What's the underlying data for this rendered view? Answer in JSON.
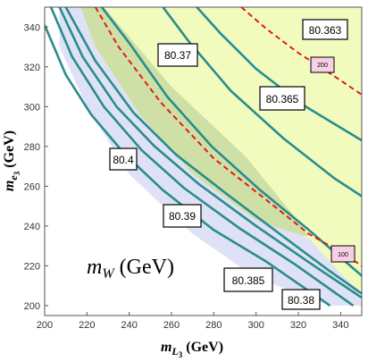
{
  "chart_data": {
    "type": "contour",
    "x_axis": {
      "label_base": "m",
      "label_sub": "L",
      "label_subsub": "3",
      "label_units": "(GeV)",
      "range": [
        200,
        350
      ],
      "ticks": [
        200,
        220,
        240,
        260,
        280,
        300,
        320,
        340
      ]
    },
    "y_axis": {
      "label_base": "m",
      "label_sub": "e",
      "label_subsub": "3",
      "label_units": "(GeV)",
      "range": [
        195,
        350
      ],
      "ticks": [
        200,
        220,
        240,
        260,
        280,
        300,
        320,
        340
      ]
    },
    "plot_label": {
      "base": "m",
      "sub": "W",
      "units": "(GeV)"
    },
    "colors": {
      "yellow_region": "#f2fbbe",
      "green_region": "#cfe0a6",
      "blue_region": "#dfe2f6",
      "contour": "#2a8c8c",
      "dashed": "#e01b1b",
      "small_label_fill": "#f8cfe4"
    },
    "regions": {
      "yellow": [
        [
          214,
          350
        ],
        [
          350,
          350
        ],
        [
          350,
          208
        ],
        [
          335,
          208
        ],
        [
          300,
          233
        ],
        [
          270,
          262
        ],
        [
          245,
          290
        ],
        [
          225,
          320
        ],
        [
          214,
          340
        ]
      ],
      "green": [
        [
          214,
          350
        ],
        [
          228,
          350
        ],
        [
          260,
          310
        ],
        [
          295,
          275
        ],
        [
          318,
          245
        ],
        [
          325,
          235
        ],
        [
          305,
          236
        ],
        [
          278,
          258
        ],
        [
          252,
          285
        ],
        [
          232,
          315
        ],
        [
          218,
          340
        ]
      ],
      "blue": [
        [
          207,
          350
        ],
        [
          217,
          350
        ],
        [
          224,
          330
        ],
        [
          245,
          296
        ],
        [
          270,
          266
        ],
        [
          300,
          243
        ],
        [
          325,
          234
        ],
        [
          340,
          216
        ],
        [
          348,
          208
        ],
        [
          350,
          200
        ],
        [
          335,
          200
        ],
        [
          300,
          214
        ],
        [
          270,
          236
        ],
        [
          240,
          266
        ],
        [
          220,
          300
        ],
        [
          207,
          330
        ]
      ]
    },
    "contours": [
      {
        "label": "80.4",
        "points": [
          [
            200,
            341
          ],
          [
            210,
            316
          ],
          [
            222,
            296
          ],
          [
            238,
            276
          ],
          [
            256,
            258
          ],
          [
            280,
            238
          ],
          [
            305,
            222
          ],
          [
            335,
            200
          ]
        ]
      },
      {
        "label": "80.39",
        "points": [
          [
            203,
            350
          ],
          [
            213,
            325
          ],
          [
            228,
            300
          ],
          [
            246,
            278
          ],
          [
            266,
            259
          ],
          [
            292,
            239
          ],
          [
            318,
            221
          ],
          [
            346,
            200
          ]
        ]
      },
      {
        "label": "80.385",
        "points": [
          [
            207,
            350
          ],
          [
            218,
            325
          ],
          [
            234,
            300
          ],
          [
            252,
            280
          ],
          [
            273,
            261
          ],
          [
            300,
            240
          ],
          [
            326,
            221
          ],
          [
            350,
            204
          ]
        ]
      },
      {
        "label": "80.38",
        "points": [
          [
            210,
            350
          ],
          [
            224,
            323
          ],
          [
            242,
            297
          ],
          [
            262,
            276
          ],
          [
            285,
            257
          ],
          [
            310,
            237
          ],
          [
            334,
            218
          ],
          [
            350,
            206
          ]
        ]
      },
      {
        "label": "80.37",
        "points": [
          [
            227,
            350
          ],
          [
            240,
            332
          ],
          [
            258,
            305
          ],
          [
            279,
            280
          ],
          [
            302,
            258
          ],
          [
            325,
            238
          ],
          [
            350,
            215
          ]
        ]
      },
      {
        "label": "80.365",
        "points": [
          [
            256,
            350
          ],
          [
            268,
            333
          ],
          [
            288,
            308
          ],
          [
            313,
            284
          ],
          [
            337,
            264
          ],
          [
            350,
            255
          ]
        ]
      },
      {
        "label": "80.363",
        "points": [
          [
            272,
            350
          ],
          [
            283,
            337
          ],
          [
            300,
            319
          ],
          [
            322,
            301
          ],
          [
            350,
            283
          ]
        ]
      }
    ],
    "dashed_curves": [
      {
        "label": "200",
        "points": [
          [
            293,
            350
          ],
          [
            305,
            339
          ],
          [
            320,
            327
          ],
          [
            336,
            316
          ],
          [
            350,
            306
          ]
        ]
      },
      {
        "label": "100",
        "points": [
          [
            224,
            350
          ],
          [
            235,
            330
          ],
          [
            255,
            302
          ],
          [
            280,
            274
          ],
          [
            305,
            253
          ],
          [
            325,
            236
          ],
          [
            340,
            227
          ],
          [
            350,
            220
          ]
        ]
      }
    ],
    "labels": {
      "80.4": "80.4",
      "80.39": "80.39",
      "80.385": "80.385",
      "80.38": "80.38",
      "80.37": "80.37",
      "80.365": "80.365",
      "80.363": "80.363",
      "200": "200",
      "100": "100"
    }
  }
}
